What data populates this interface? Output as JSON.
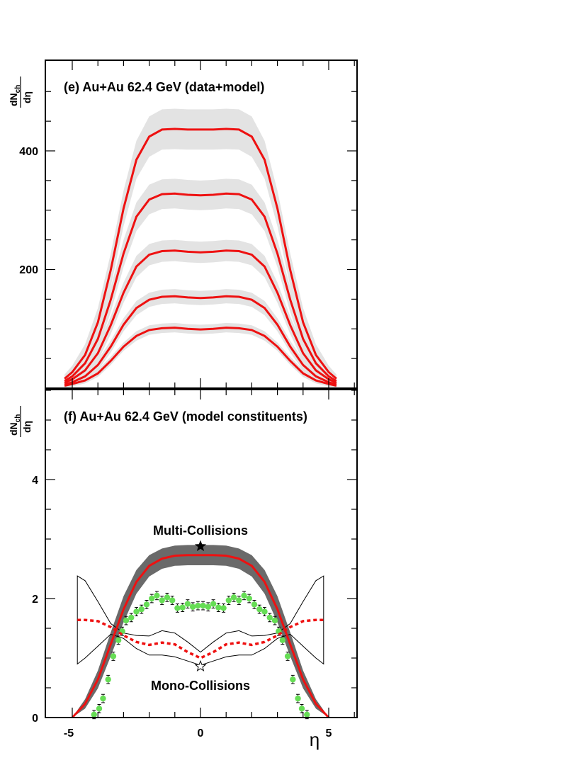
{
  "chart_data": [
    {
      "type": "line",
      "title": "(e) Au+Au 62.4 GeV (data+model)",
      "ylabel_main": "dN",
      "ylabel_sub": "ch",
      "ylabel_den": "dη",
      "xlabel": "η",
      "xlim": [
        -5.5,
        6
      ],
      "ylim": [
        0,
        515
      ],
      "yticks": [
        "200",
        "400"
      ],
      "yticks_values": [
        200,
        400
      ],
      "colors": {
        "line": "#ee1111",
        "band": "#e3e3e3"
      },
      "series": [
        {
          "x": [
            -5.3,
            -5.0,
            -4.5,
            -4.0,
            -3.5,
            -3.0,
            -2.5,
            -2.0,
            -1.5,
            -1.0,
            -0.5,
            0.0,
            0.5,
            1.0,
            1.5,
            2.0,
            2.5,
            3.0,
            3.5,
            4.0,
            4.5,
            5.0,
            5.3
          ],
          "y": [
            16,
            27,
            56,
            111,
            199,
            303,
            385,
            424,
            436,
            437,
            436,
            436,
            436,
            437,
            436,
            424,
            385,
            303,
            199,
            111,
            56,
            27,
            16
          ],
          "band_halfwidth": [
            7,
            11,
            18,
            24,
            28,
            30,
            32,
            34,
            34,
            34,
            34,
            34,
            34,
            34,
            34,
            34,
            32,
            30,
            28,
            24,
            18,
            11,
            7
          ]
        },
        {
          "x": [
            -5.3,
            -5.0,
            -4.5,
            -4.0,
            -3.5,
            -3.0,
            -2.5,
            -2.0,
            -1.5,
            -1.0,
            -0.5,
            0.0,
            0.5,
            1.0,
            1.5,
            2.0,
            2.5,
            3.0,
            3.5,
            4.0,
            4.5,
            5.0,
            5.3
          ],
          "y": [
            12,
            20,
            42,
            83,
            149,
            227,
            289,
            318,
            327,
            328,
            326,
            325,
            326,
            328,
            327,
            318,
            289,
            227,
            149,
            83,
            42,
            20,
            12
          ],
          "band_halfwidth": [
            6,
            9,
            14,
            18,
            21,
            23,
            24,
            25,
            25,
            25,
            25,
            25,
            25,
            25,
            25,
            25,
            24,
            23,
            21,
            18,
            14,
            9,
            6
          ]
        },
        {
          "x": [
            -5.3,
            -5.0,
            -4.5,
            -4.0,
            -3.5,
            -3.0,
            -2.5,
            -2.0,
            -1.5,
            -1.0,
            -0.5,
            0.0,
            0.5,
            1.0,
            1.5,
            2.0,
            2.5,
            3.0,
            3.5,
            4.0,
            4.5,
            5.0,
            5.3
          ],
          "y": [
            9,
            15,
            30,
            59,
            106,
            161,
            205,
            225,
            231,
            232,
            230,
            229,
            230,
            232,
            231,
            225,
            205,
            161,
            106,
            59,
            30,
            15,
            9
          ],
          "band_halfwidth": [
            5,
            7,
            10,
            13,
            15,
            17,
            18,
            18,
            18,
            18,
            18,
            18,
            18,
            18,
            18,
            18,
            18,
            17,
            15,
            13,
            10,
            7,
            5
          ]
        },
        {
          "x": [
            -5.3,
            -5.0,
            -4.5,
            -4.0,
            -3.5,
            -3.0,
            -2.5,
            -2.0,
            -1.5,
            -1.0,
            -0.5,
            0.0,
            0.5,
            1.0,
            1.5,
            2.0,
            2.5,
            3.0,
            3.5,
            4.0,
            4.5,
            5.0,
            5.3
          ],
          "y": [
            6,
            10,
            20,
            39,
            70,
            107,
            135,
            149,
            154,
            155,
            153,
            152,
            153,
            155,
            154,
            149,
            135,
            107,
            70,
            39,
            20,
            10,
            6
          ],
          "band_halfwidth": [
            4,
            5,
            7,
            9,
            10,
            11,
            12,
            12,
            12,
            12,
            12,
            12,
            12,
            12,
            12,
            12,
            12,
            11,
            10,
            9,
            7,
            5,
            4
          ]
        },
        {
          "x": [
            -5.3,
            -5.0,
            -4.5,
            -4.0,
            -3.5,
            -3.0,
            -2.5,
            -2.0,
            -1.5,
            -1.0,
            -0.5,
            0.0,
            0.5,
            1.0,
            1.5,
            2.0,
            2.5,
            3.0,
            3.5,
            4.0,
            4.5,
            5.0,
            5.3
          ],
          "y": [
            4,
            7,
            13,
            25,
            46,
            70,
            88,
            98,
            101,
            102,
            100,
            99,
            100,
            102,
            101,
            98,
            88,
            70,
            46,
            25,
            13,
            7,
            4
          ],
          "band_halfwidth": [
            3,
            4,
            5,
            6,
            7,
            7,
            8,
            8,
            8,
            8,
            8,
            8,
            8,
            8,
            8,
            8,
            8,
            7,
            7,
            6,
            5,
            4,
            3
          ]
        }
      ]
    },
    {
      "type": "line",
      "title": "(f) Au+Au 62.4 GeV (model constituents)",
      "ylabel_main": "dN",
      "ylabel_sub": "ch",
      "ylabel_den": "dη",
      "xlabel": "η",
      "xlim": [
        -5.5,
        6
      ],
      "ylim": [
        0,
        5.6
      ],
      "yticks": [
        "0",
        "2",
        "4"
      ],
      "yticks_values": [
        0,
        2,
        4
      ],
      "xticks": [
        "-5",
        "0",
        "5"
      ],
      "xticks_values": [
        -5,
        0,
        5
      ],
      "annotations": {
        "multi": "Multi-Collisions",
        "mono": "Mono-Collisions"
      },
      "colors": {
        "line": "#ee1111",
        "band": "#6a6a6a",
        "points": "#66dd55"
      },
      "multi_collisions": {
        "x": [
          -5.0,
          -4.5,
          -4.0,
          -3.5,
          -3.0,
          -2.5,
          -2.0,
          -1.5,
          -1.0,
          -0.5,
          0.0,
          0.5,
          1.0,
          1.5,
          2.0,
          2.5,
          3.0,
          3.5,
          4.0,
          4.5,
          5.0
        ],
        "y": [
          0.0,
          0.23,
          0.64,
          1.23,
          1.82,
          2.28,
          2.55,
          2.67,
          2.72,
          2.73,
          2.73,
          2.73,
          2.72,
          2.67,
          2.55,
          2.28,
          1.82,
          1.23,
          0.64,
          0.23,
          0.0
        ],
        "band_halfwidth": [
          0.0,
          0.08,
          0.15,
          0.2,
          0.22,
          0.2,
          0.18,
          0.17,
          0.17,
          0.17,
          0.17,
          0.17,
          0.17,
          0.17,
          0.18,
          0.2,
          0.22,
          0.2,
          0.15,
          0.08,
          0.0
        ],
        "marker": {
          "x": 0,
          "y": 2.88
        }
      },
      "mono_collisions": {
        "x": [
          -4.8,
          -4.5,
          -4.0,
          -3.5,
          -3.0,
          -2.5,
          -2.0,
          -1.5,
          -1.0,
          -0.5,
          0.0,
          0.5,
          1.0,
          1.5,
          2.0,
          2.5,
          3.0,
          3.5,
          4.0,
          4.5,
          4.8
        ],
        "y": [
          1.64,
          1.64,
          1.62,
          1.52,
          1.38,
          1.27,
          1.22,
          1.26,
          1.23,
          1.1,
          1.0,
          1.1,
          1.23,
          1.26,
          1.22,
          1.27,
          1.38,
          1.52,
          1.62,
          1.64,
          1.64
        ],
        "band_upper": [
          2.38,
          2.3,
          1.95,
          1.58,
          1.42,
          1.38,
          1.37,
          1.46,
          1.42,
          1.27,
          1.1,
          1.27,
          1.42,
          1.46,
          1.37,
          1.38,
          1.42,
          1.58,
          1.95,
          2.3,
          2.38
        ],
        "band_lower": [
          0.9,
          1.0,
          1.2,
          1.4,
          1.33,
          1.16,
          1.05,
          1.05,
          1.02,
          0.95,
          0.88,
          0.95,
          1.02,
          1.05,
          1.05,
          1.16,
          1.33,
          1.4,
          1.2,
          1.0,
          0.9
        ],
        "marker": {
          "x": 0,
          "y": 0.86
        }
      },
      "points": {
        "x": [
          -4.15,
          -3.95,
          -3.8,
          -3.6,
          -3.4,
          -3.2,
          -3.05,
          -2.9,
          -2.7,
          -2.5,
          -2.3,
          -2.1,
          -1.9,
          -1.7,
          -1.5,
          -1.3,
          -1.1,
          -0.9,
          -0.7,
          -0.5,
          -0.3,
          -0.1,
          0.1,
          0.3,
          0.5,
          0.7,
          0.9,
          1.1,
          1.3,
          1.5,
          1.7,
          1.9,
          2.1,
          2.3,
          2.5,
          2.7,
          2.9,
          3.05,
          3.2,
          3.4,
          3.6,
          3.8,
          3.95,
          4.15
        ],
        "y": [
          0.05,
          0.15,
          0.32,
          0.64,
          1.03,
          1.3,
          1.45,
          1.63,
          1.68,
          1.78,
          1.82,
          1.9,
          2.0,
          2.05,
          1.97,
          2.02,
          1.97,
          1.84,
          1.85,
          1.91,
          1.86,
          1.88,
          1.88,
          1.86,
          1.91,
          1.85,
          1.84,
          1.97,
          2.02,
          1.97,
          2.05,
          2.0,
          1.9,
          1.82,
          1.78,
          1.68,
          1.63,
          1.45,
          1.3,
          1.03,
          0.64,
          0.32,
          0.15,
          0.05
        ],
        "err": 0.07
      }
    }
  ]
}
